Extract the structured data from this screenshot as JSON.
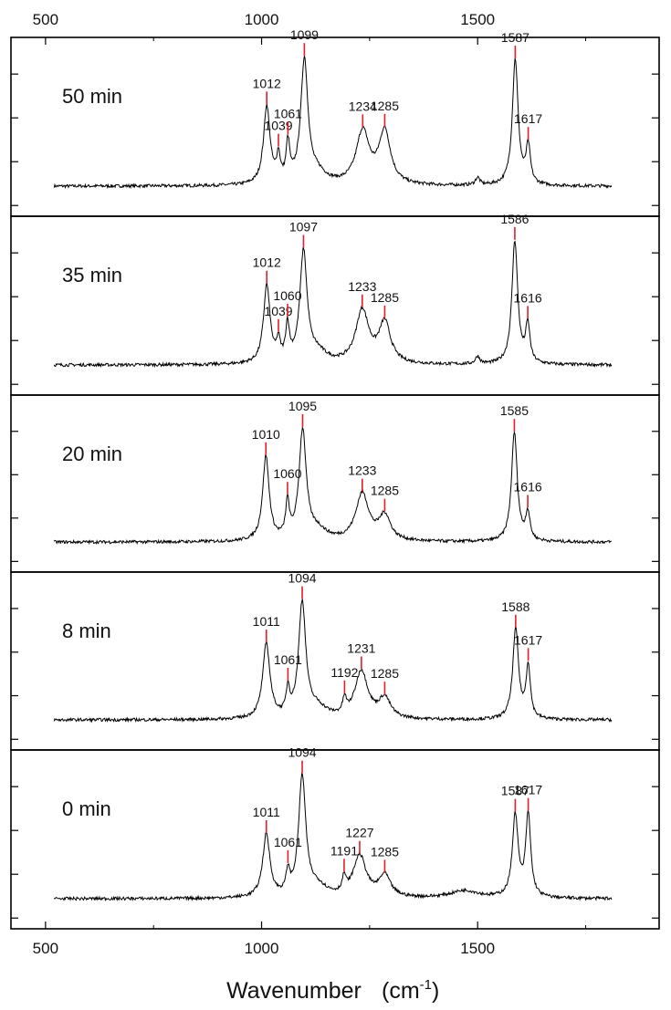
{
  "chart_data": {
    "type": "line",
    "xlabel": "Wavenumber",
    "xunit": "(cm",
    "xunit_sup": "-1",
    "xunit_close": ")",
    "xlim": [
      420,
      1920
    ],
    "xticks": [
      500,
      1000,
      1500
    ],
    "xtick_labels": [
      "500",
      "1000",
      "1500"
    ],
    "grid": false,
    "legend": "none",
    "line_color": "#000000",
    "marker_color": "#e0202a",
    "panels": [
      {
        "label": "50 min",
        "baseline": 0.05,
        "bumps": [
          [
            1000,
            8,
            0.0
          ],
          [
            1012,
            9,
            0.62
          ],
          [
            1039,
            5,
            0.2
          ],
          [
            1061,
            5,
            0.3
          ],
          [
            1099,
            10,
            0.98
          ],
          [
            1130,
            25,
            0.08
          ],
          [
            1234,
            18,
            0.42
          ],
          [
            1285,
            16,
            0.42
          ],
          [
            1500,
            6,
            0.06
          ],
          [
            1587,
            8,
            1.0
          ],
          [
            1617,
            6,
            0.3
          ]
        ],
        "peaks": [
          {
            "x": 1012,
            "label": "1012",
            "y": 0.62
          },
          {
            "x": 1039,
            "label": "1039",
            "y": 0.2
          },
          {
            "x": 1061,
            "label": "1061",
            "y": 0.3
          },
          {
            "x": 1099,
            "label": "1099",
            "y": 0.98
          },
          {
            "x": 1234,
            "label": "1234",
            "y": 0.42
          },
          {
            "x": 1285,
            "label": "1285",
            "y": 0.42
          },
          {
            "x": 1587,
            "label": "1587",
            "y": 1.0
          },
          {
            "x": 1617,
            "label": "1617",
            "y": 0.3
          }
        ]
      },
      {
        "label": "35 min",
        "baseline": 0.05,
        "bumps": [
          [
            1012,
            9,
            0.62
          ],
          [
            1039,
            5,
            0.15
          ],
          [
            1060,
            5,
            0.28
          ],
          [
            1097,
            10,
            0.88
          ],
          [
            1130,
            25,
            0.08
          ],
          [
            1233,
            18,
            0.42
          ],
          [
            1285,
            16,
            0.32
          ],
          [
            1500,
            6,
            0.06
          ],
          [
            1586,
            8,
            0.98
          ],
          [
            1616,
            6,
            0.3
          ]
        ],
        "peaks": [
          {
            "x": 1012,
            "label": "1012",
            "y": 0.62
          },
          {
            "x": 1039,
            "label": "1039",
            "y": 0.15
          },
          {
            "x": 1060,
            "label": "1060",
            "y": 0.28
          },
          {
            "x": 1097,
            "label": "1097",
            "y": 0.88
          },
          {
            "x": 1233,
            "label": "1233",
            "y": 0.42
          },
          {
            "x": 1285,
            "label": "1285",
            "y": 0.32
          },
          {
            "x": 1586,
            "label": "1586",
            "y": 0.98
          },
          {
            "x": 1616,
            "label": "1616",
            "y": 0.3
          }
        ]
      },
      {
        "label": "20 min",
        "baseline": 0.05,
        "bumps": [
          [
            1010,
            9,
            0.68
          ],
          [
            1060,
            5,
            0.28
          ],
          [
            1095,
            10,
            0.88
          ],
          [
            1130,
            25,
            0.08
          ],
          [
            1233,
            18,
            0.38
          ],
          [
            1285,
            16,
            0.2
          ],
          [
            1585,
            8,
            0.88
          ],
          [
            1616,
            6,
            0.22
          ]
        ],
        "peaks": [
          {
            "x": 1010,
            "label": "1010",
            "y": 0.68
          },
          {
            "x": 1060,
            "label": "1060",
            "y": 0.28
          },
          {
            "x": 1095,
            "label": "1095",
            "y": 0.88
          },
          {
            "x": 1233,
            "label": "1233",
            "y": 0.38
          },
          {
            "x": 1285,
            "label": "1285",
            "y": 0.2
          },
          {
            "x": 1585,
            "label": "1585",
            "y": 0.88
          },
          {
            "x": 1616,
            "label": "1616",
            "y": 0.22
          }
        ]
      },
      {
        "label": "8 min",
        "baseline": 0.05,
        "bumps": [
          [
            1011,
            10,
            0.6
          ],
          [
            1061,
            5,
            0.2
          ],
          [
            1094,
            10,
            0.92
          ],
          [
            1130,
            25,
            0.08
          ],
          [
            1192,
            5,
            0.12
          ],
          [
            1231,
            18,
            0.38
          ],
          [
            1285,
            16,
            0.16
          ],
          [
            1588,
            8,
            0.72
          ],
          [
            1617,
            6,
            0.42
          ]
        ],
        "peaks": [
          {
            "x": 1011,
            "label": "1011",
            "y": 0.6
          },
          {
            "x": 1061,
            "label": "1061",
            "y": 0.2
          },
          {
            "x": 1094,
            "label": "1094",
            "y": 0.92
          },
          {
            "x": 1192,
            "label": "1192",
            "y": 0.12
          },
          {
            "x": 1231,
            "label": "1231",
            "y": 0.38
          },
          {
            "x": 1285,
            "label": "1285",
            "y": 0.16
          },
          {
            "x": 1588,
            "label": "1588",
            "y": 0.72
          },
          {
            "x": 1617,
            "label": "1617",
            "y": 0.42
          }
        ]
      },
      {
        "label": "0 min",
        "baseline": 0.05,
        "bumps": [
          [
            1011,
            10,
            0.5
          ],
          [
            1061,
            5,
            0.17
          ],
          [
            1094,
            10,
            0.95
          ],
          [
            1130,
            25,
            0.08
          ],
          [
            1191,
            5,
            0.12
          ],
          [
            1227,
            18,
            0.33
          ],
          [
            1285,
            16,
            0.17
          ],
          [
            1470,
            40,
            0.06
          ],
          [
            1587,
            8,
            0.65
          ],
          [
            1617,
            7,
            0.65
          ]
        ],
        "peaks": [
          {
            "x": 1011,
            "label": "1011",
            "y": 0.5
          },
          {
            "x": 1061,
            "label": "1061",
            "y": 0.17
          },
          {
            "x": 1094,
            "label": "1094",
            "y": 0.95
          },
          {
            "x": 1191,
            "label": "1191",
            "y": 0.12
          },
          {
            "x": 1227,
            "label": "1227",
            "y": 0.33
          },
          {
            "x": 1285,
            "label": "1285",
            "y": 0.17
          },
          {
            "x": 1587,
            "label": "1587",
            "y": 0.65
          },
          {
            "x": 1617,
            "label": "1617",
            "y": 0.65
          }
        ]
      }
    ]
  }
}
